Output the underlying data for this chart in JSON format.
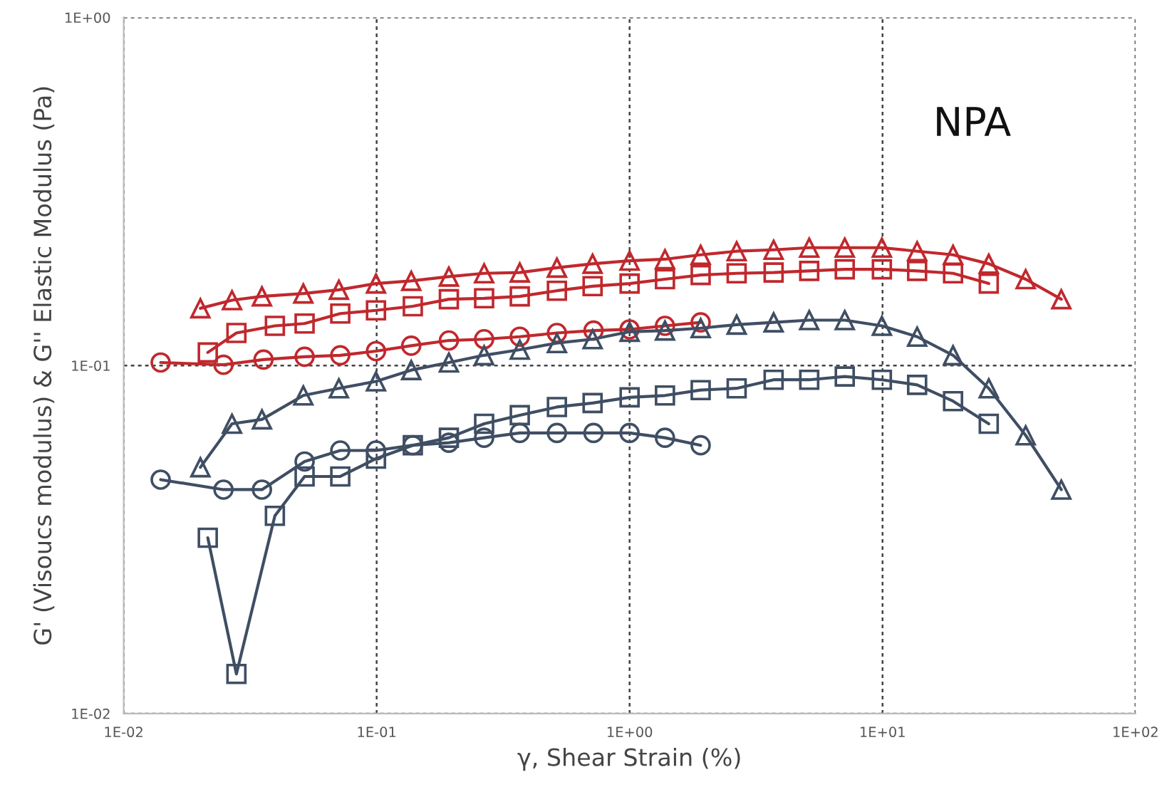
{
  "chart_data": {
    "type": "line",
    "xlabel": "γ, Shear Strain (%)",
    "ylabel": "G' (Visoucs modulus) & G'' Elastic Modulus (Pa)",
    "log": "xy",
    "grid": true,
    "legend": false,
    "xlim": [
      0.01,
      100
    ],
    "ylim": [
      0.01,
      1
    ],
    "xticks": [
      {
        "value": 0.01,
        "label": "1E-02"
      },
      {
        "value": 0.1,
        "label": "1E-01"
      },
      {
        "value": 1,
        "label": "1E+00"
      },
      {
        "value": 10,
        "label": "1E+01"
      },
      {
        "value": 100,
        "label": "1E+02"
      }
    ],
    "yticks": [
      {
        "value": 0.01,
        "label": "1E-02"
      },
      {
        "value": 0.1,
        "label": "1E-01"
      },
      {
        "value": 1,
        "label": "1E+00"
      }
    ],
    "annotations": [
      "NPA"
    ],
    "series": [
      {
        "color": "#c0282d",
        "marker": "triangle",
        "x": [
          0.0201,
          0.0268,
          0.0352,
          0.0513,
          0.0709,
          0.0994,
          0.137,
          0.193,
          0.266,
          0.368,
          0.516,
          0.714,
          1.0,
          1.38,
          1.91,
          2.65,
          3.71,
          5.13,
          7.09,
          9.94,
          13.7,
          19.0,
          26.3,
          36.8,
          50.9
        ],
        "values": [
          0.146,
          0.154,
          0.158,
          0.161,
          0.165,
          0.172,
          0.175,
          0.18,
          0.184,
          0.185,
          0.191,
          0.196,
          0.2,
          0.202,
          0.208,
          0.213,
          0.215,
          0.218,
          0.218,
          0.218,
          0.213,
          0.208,
          0.196,
          0.177,
          0.155
        ]
      },
      {
        "color": "#c0282d",
        "marker": "square",
        "x": [
          0.0215,
          0.0279,
          0.0396,
          0.0519,
          0.0718,
          0.0994,
          0.139,
          0.193,
          0.266,
          0.368,
          0.516,
          0.714,
          1.0,
          1.38,
          1.91,
          2.65,
          3.71,
          5.13,
          7.09,
          9.94,
          13.7,
          19.0,
          26.3
        ],
        "values": [
          0.109,
          0.124,
          0.13,
          0.132,
          0.141,
          0.144,
          0.148,
          0.155,
          0.156,
          0.158,
          0.164,
          0.169,
          0.172,
          0.177,
          0.182,
          0.184,
          0.185,
          0.187,
          0.189,
          0.189,
          0.187,
          0.184,
          0.172
        ]
      },
      {
        "color": "#c0282d",
        "marker": "circle",
        "x": [
          0.014,
          0.0248,
          0.0357,
          0.0519,
          0.0718,
          0.0994,
          0.137,
          0.193,
          0.266,
          0.368,
          0.516,
          0.72,
          1.0,
          1.38,
          1.91
        ],
        "values": [
          0.102,
          0.1005,
          0.104,
          0.106,
          0.107,
          0.11,
          0.114,
          0.118,
          0.119,
          0.121,
          0.124,
          0.126,
          0.127,
          0.13,
          0.133
        ]
      },
      {
        "color": "#3f4e63",
        "marker": "triangle",
        "x": [
          0.0201,
          0.0268,
          0.0352,
          0.0513,
          0.0709,
          0.0994,
          0.137,
          0.193,
          0.266,
          0.368,
          0.516,
          0.714,
          1.0,
          1.38,
          1.91,
          2.65,
          3.71,
          5.13,
          7.09,
          9.94,
          13.7,
          19.0,
          26.3,
          36.8,
          50.9
        ],
        "values": [
          0.051,
          0.068,
          0.07,
          0.082,
          0.086,
          0.09,
          0.097,
          0.102,
          0.107,
          0.111,
          0.116,
          0.119,
          0.125,
          0.126,
          0.128,
          0.131,
          0.133,
          0.135,
          0.135,
          0.13,
          0.121,
          0.107,
          0.086,
          0.063,
          0.044
        ]
      },
      {
        "color": "#3f4e63",
        "marker": "square",
        "x": [
          0.0215,
          0.0279,
          0.0396,
          0.0519,
          0.0718,
          0.0994,
          0.139,
          0.193,
          0.266,
          0.368,
          0.516,
          0.714,
          1.0,
          1.38,
          1.91,
          2.65,
          3.71,
          5.13,
          7.09,
          9.94,
          13.7,
          19.0,
          26.3
        ],
        "values": [
          0.032,
          0.013,
          0.037,
          0.048,
          0.048,
          0.054,
          0.059,
          0.062,
          0.068,
          0.072,
          0.076,
          0.078,
          0.081,
          0.082,
          0.085,
          0.086,
          0.091,
          0.091,
          0.093,
          0.091,
          0.088,
          0.079,
          0.068
        ]
      },
      {
        "color": "#3f4e63",
        "marker": "circle",
        "x": [
          0.014,
          0.0248,
          0.0352,
          0.0519,
          0.0718,
          0.0994,
          0.139,
          0.193,
          0.266,
          0.368,
          0.516,
          0.72,
          1.0,
          1.38,
          1.91
        ],
        "values": [
          0.047,
          0.044,
          0.044,
          0.053,
          0.057,
          0.057,
          0.059,
          0.06,
          0.062,
          0.064,
          0.064,
          0.064,
          0.064,
          0.062,
          0.059
        ]
      }
    ]
  }
}
